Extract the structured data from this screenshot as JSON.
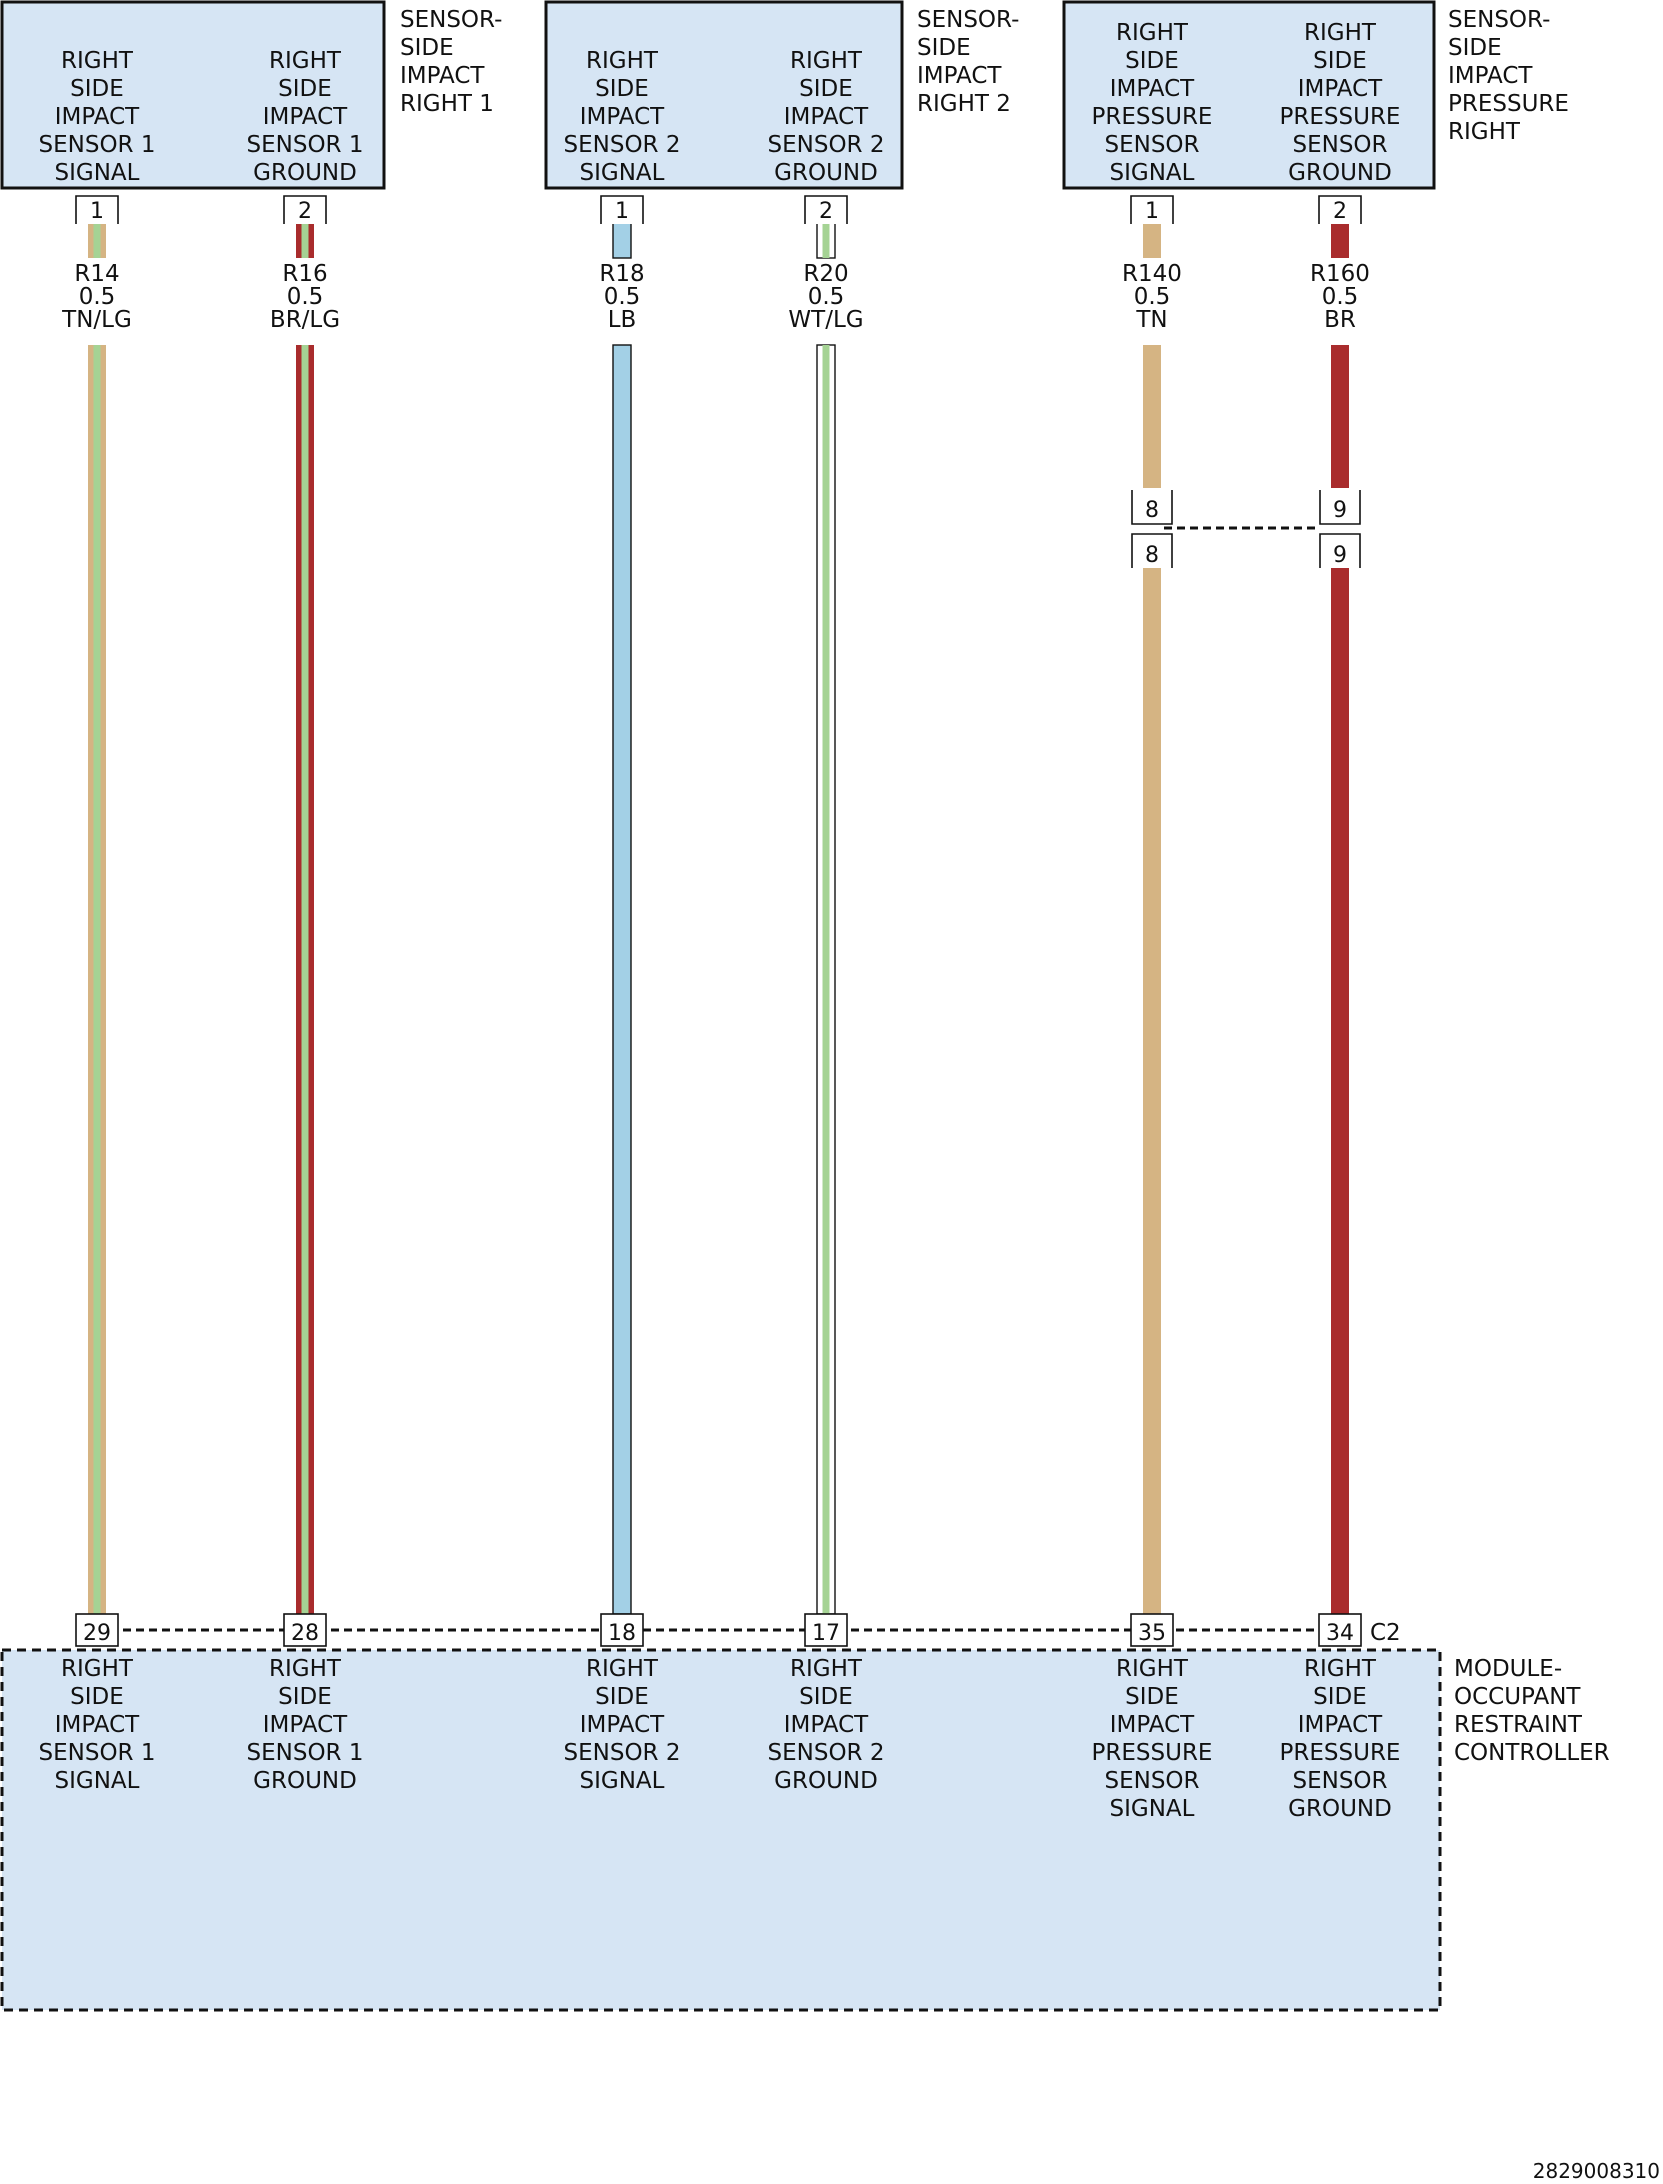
{
  "colors": {
    "box_fill": "#d6e5f4",
    "TN": "#d5b483",
    "LG": "#a5d394",
    "BR": "#a92c2d",
    "LB": "#a3d0e6",
    "WT": "#ffffff",
    "outline": "#111111"
  },
  "sensors": [
    {
      "id": "s1",
      "name_lines": [
        "SENSOR-",
        "SIDE",
        "IMPACT",
        "RIGHT 1"
      ],
      "pins": [
        {
          "label_lines": [
            "RIGHT",
            "SIDE",
            "IMPACT",
            "SENSOR 1",
            "SIGNAL"
          ],
          "pin": "1"
        },
        {
          "label_lines": [
            "RIGHT",
            "SIDE",
            "IMPACT",
            "SENSOR 1",
            "GROUND"
          ],
          "pin": "2"
        }
      ]
    },
    {
      "id": "s2",
      "name_lines": [
        "SENSOR-",
        "SIDE",
        "IMPACT",
        "RIGHT 2"
      ],
      "pins": [
        {
          "label_lines": [
            "RIGHT",
            "SIDE",
            "IMPACT",
            "SENSOR 2",
            "SIGNAL"
          ],
          "pin": "1"
        },
        {
          "label_lines": [
            "RIGHT",
            "SIDE",
            "IMPACT",
            "SENSOR 2",
            "GROUND"
          ],
          "pin": "2"
        }
      ]
    },
    {
      "id": "s3",
      "name_lines": [
        "SENSOR-",
        "SIDE",
        "IMPACT",
        "PRESSURE",
        "RIGHT"
      ],
      "pins": [
        {
          "label_lines": [
            "RIGHT",
            "SIDE",
            "IMPACT",
            "PRESSURE",
            "SENSOR",
            "SIGNAL"
          ],
          "pin": "1"
        },
        {
          "label_lines": [
            "RIGHT",
            "SIDE",
            "IMPACT",
            "PRESSURE",
            "SENSOR",
            "GROUND"
          ],
          "pin": "2"
        }
      ]
    }
  ],
  "wires": [
    {
      "circuit": "R14",
      "gauge": "0.5",
      "color_code": "TN/LG",
      "base": "TN",
      "stripe": "LG",
      "module_pin": "29"
    },
    {
      "circuit": "R16",
      "gauge": "0.5",
      "color_code": "BR/LG",
      "base": "BR",
      "stripe": "LG",
      "module_pin": "28"
    },
    {
      "circuit": "R18",
      "gauge": "0.5",
      "color_code": "LB",
      "base": "LB",
      "stripe": "",
      "module_pin": "18"
    },
    {
      "circuit": "R20",
      "gauge": "0.5",
      "color_code": "WT/LG",
      "base": "WT",
      "stripe": "LG",
      "module_pin": "17"
    },
    {
      "circuit": "R140",
      "gauge": "0.5",
      "color_code": "TN",
      "base": "TN",
      "stripe": "",
      "module_pin": "35",
      "inline_pin": "8"
    },
    {
      "circuit": "R160",
      "gauge": "0.5",
      "color_code": "BR",
      "base": "BR",
      "stripe": "",
      "module_pin": "34",
      "inline_pin": "9"
    }
  ],
  "module": {
    "name_lines": [
      "MODULE-",
      "OCCUPANT",
      "RESTRAINT",
      "CONTROLLER"
    ],
    "connector": "C2",
    "pin_labels": [
      [
        "RIGHT",
        "SIDE",
        "IMPACT",
        "SENSOR 1",
        "SIGNAL"
      ],
      [
        "RIGHT",
        "SIDE",
        "IMPACT",
        "SENSOR 1",
        "GROUND"
      ],
      [
        "RIGHT",
        "SIDE",
        "IMPACT",
        "SENSOR 2",
        "SIGNAL"
      ],
      [
        "RIGHT",
        "SIDE",
        "IMPACT",
        "SENSOR 2",
        "GROUND"
      ],
      [
        "RIGHT",
        "SIDE",
        "IMPACT",
        "PRESSURE",
        "SENSOR",
        "SIGNAL"
      ],
      [
        "RIGHT",
        "SIDE",
        "IMPACT",
        "PRESSURE",
        "SENSOR",
        "GROUND"
      ]
    ]
  },
  "footer": {
    "doc_id": "2829008310"
  }
}
